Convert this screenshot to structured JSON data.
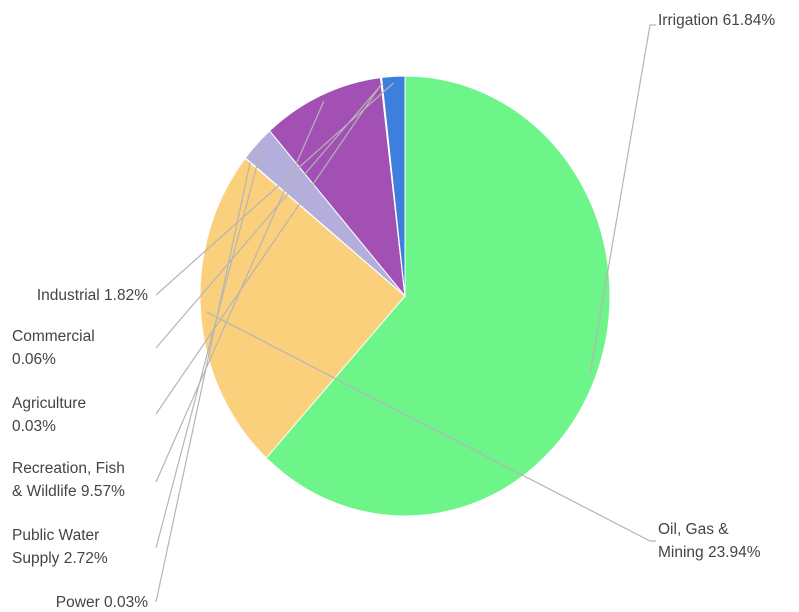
{
  "chart_data": {
    "type": "pie",
    "title": "",
    "start_angle_deg": 0,
    "direction": "clockwise",
    "slices": [
      {
        "name": "Irrigation",
        "value": 61.84,
        "color": "#6df58a",
        "label_lines": [
          "Irrigation 61.84%"
        ]
      },
      {
        "name": "Oil, Gas & Mining",
        "value": 23.94,
        "color": "#fbd07c",
        "label_lines": [
          "Oil, Gas &",
          "Mining 23.94%"
        ]
      },
      {
        "name": "Power",
        "value": 0.03,
        "color": "#c9c9e6",
        "label_lines": [
          "Power 0.03%"
        ]
      },
      {
        "name": "Public Water Supply",
        "value": 2.72,
        "color": "#b4aedd",
        "label_lines": [
          "Public Water",
          "Supply 2.72%"
        ]
      },
      {
        "name": "Recreation, Fish & Wildlife",
        "value": 9.57,
        "color": "#a350b5",
        "label_lines": [
          "Recreation, Fish",
          "& Wildlife 9.57%"
        ]
      },
      {
        "name": "Agriculture",
        "value": 0.03,
        "color": "#9a7fd3",
        "label_lines": [
          "Agriculture",
          "0.03%"
        ]
      },
      {
        "name": "Commercial",
        "value": 0.06,
        "color": "#7b93e0",
        "label_lines": [
          "Commercial",
          "0.06%"
        ]
      },
      {
        "name": "Industrial",
        "value": 1.82,
        "color": "#3d7fdc",
        "label_lines": [
          "Industrial 1.82%"
        ]
      }
    ]
  }
}
